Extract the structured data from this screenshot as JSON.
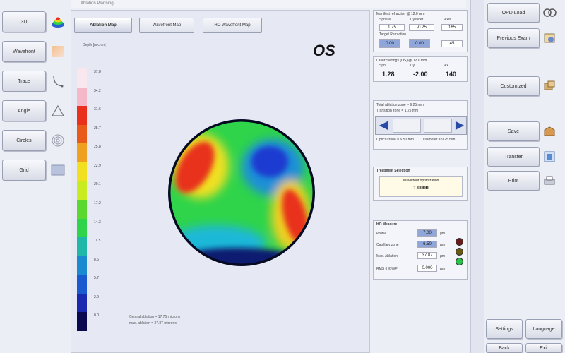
{
  "window": {
    "title": "Ablation Planning"
  },
  "left_buttons": [
    {
      "label": "3D",
      "icon": "topography-stack-icon"
    },
    {
      "label": "Wavefront",
      "icon": "color-map-icon"
    },
    {
      "label": "Trace",
      "icon": "curve-icon"
    },
    {
      "label": "Angle",
      "icon": "triangle-icon"
    },
    {
      "label": "Circles",
      "icon": "rings-icon"
    },
    {
      "label": "Grid",
      "icon": "grid-icon"
    }
  ],
  "tabs": [
    {
      "label": "Ablation Map",
      "active": true
    },
    {
      "label": "Wavefront Map",
      "active": false
    },
    {
      "label": "HO Wavefront Map",
      "active": false
    }
  ],
  "map": {
    "eye": "OS",
    "scale_title": "Depth [micron]",
    "scale_values": [
      "37.8",
      "34.2",
      "31.6",
      "28.7",
      "25.8",
      "22.9",
      "20.1",
      "17.2",
      "14.3",
      "11.5",
      "8.6",
      "5.7",
      "2.9",
      "0.0"
    ],
    "footer_lines": [
      "Central ablation = 17.75 microns",
      "max. ablation = 37.87 microns"
    ]
  },
  "refraction_panel": {
    "title": "Manifest refraction @ 12.0 mm",
    "labels": [
      "Sphere",
      "Cylinder",
      "Axis"
    ],
    "values": [
      "1.75",
      "-0.25",
      "165"
    ],
    "target_title": "Target Refraction",
    "target_values": [
      "0.00",
      "0.00",
      "45"
    ]
  },
  "laser_panel": {
    "title": "Laser Settings (OS) @ 12.0 mm",
    "labels": [
      "Sph",
      "Cyl",
      "Ax"
    ],
    "values": [
      "1.28",
      "-2.00",
      "140"
    ]
  },
  "optical_zone": {
    "lines": [
      "Total ablation zone = 9.25 mm",
      "Transition zone = 1.25 mm"
    ],
    "bottom_lines": [
      "Optical zone = 6.50 mm",
      "Diameter = 9.25 mm"
    ],
    "prev_label": "◀",
    "next_label": "▶"
  },
  "treatment_panel": {
    "title": "Treatment Selection",
    "field_label": "Wavefront optimization",
    "field_value": "1.0000"
  },
  "ho_panel": {
    "title": "HO Measure",
    "rows": [
      {
        "label": "Profile",
        "value": "7.00",
        "unit": "µm"
      },
      {
        "label": "Capillary zone",
        "value": "6.50",
        "unit": "µm"
      },
      {
        "label": "Max. Ablation",
        "value": "37.87",
        "unit": "µm"
      },
      {
        "label": "RMS (HOWF)",
        "value": "0.000",
        "unit": "µm"
      }
    ],
    "lamp_colors": [
      "#6a1a1a",
      "#6a5a10",
      "#2bc24a"
    ]
  },
  "right_buttons": [
    {
      "label": "OPD Load",
      "icon": "opd-icon"
    },
    {
      "label": "Previous Exam",
      "icon": "exam-icon"
    },
    {
      "label": "Customized",
      "icon": "customize-icon"
    },
    {
      "label": "Save",
      "icon": "save-icon"
    },
    {
      "label": "Transfer",
      "icon": "transfer-icon"
    },
    {
      "label": "Print",
      "icon": "print-icon"
    }
  ],
  "bottom_buttons": [
    "Settings",
    "Language",
    "Back",
    "Exit"
  ],
  "colors": {
    "accent": "#4f6fbf",
    "map_red": "#e8301c",
    "map_blue": "#1a3ad0",
    "map_green": "#2fd44a"
  }
}
